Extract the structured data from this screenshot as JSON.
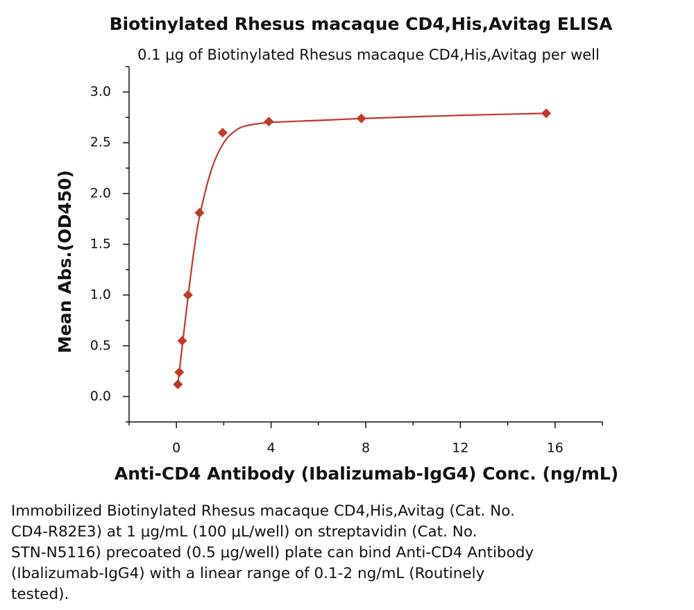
{
  "chart_data": {
    "type": "scatter",
    "title": "Biotinylated Rhesus macaque CD4,His,Avitag ELISA",
    "subtitle": "0.1 μg of Biotinylated Rhesus macaque CD4,His,Avitag per well",
    "x_label": "Anti-CD4 Antibody (Ibalizumab-IgG4) Conc. (ng/mL)",
    "y_label": "Mean Abs.(OD450)",
    "color": "#c0392b",
    "points": {
      "x": [
        0.061,
        0.122,
        0.244,
        0.488,
        0.977,
        1.953,
        3.906,
        7.8125,
        15.625
      ],
      "values": [
        0.12,
        0.24,
        0.55,
        1.0,
        1.81,
        2.6,
        2.71,
        2.74,
        2.79
      ]
    },
    "fit": {
      "x": [
        0.06,
        0.25,
        0.5,
        0.75,
        1,
        1.5,
        2,
        2.5,
        3,
        4,
        6,
        8,
        12,
        15.6
      ],
      "values": [
        0.12,
        0.5,
        1.0,
        1.45,
        1.8,
        2.25,
        2.5,
        2.62,
        2.67,
        2.7,
        2.72,
        2.74,
        2.77,
        2.79
      ]
    },
    "xlim": [
      -2,
      18
    ],
    "xticks": [
      0,
      4,
      8,
      12,
      16
    ],
    "xminor_ticks": [
      -2,
      2,
      6,
      10,
      14,
      18
    ],
    "ylim": [
      -0.25,
      3.25
    ],
    "yticks": [
      {
        "value": 0,
        "label": "0.0"
      },
      {
        "value": 0.5,
        "label": "0.5"
      },
      {
        "value": 1,
        "label": "1.0"
      },
      {
        "value": 1.5,
        "label": "1.5"
      },
      {
        "value": 2,
        "label": "2.0"
      },
      {
        "value": 2.5,
        "label": "2.5"
      },
      {
        "value": 3,
        "label": "3.0"
      }
    ],
    "yminor_ticks": [
      -0.25,
      0.25,
      0.75,
      1.25,
      1.75,
      2.25,
      2.75,
      3.25
    ]
  },
  "caption": [
    "Immobilized Biotinylated Rhesus macaque CD4,His,Avitag (Cat. No.",
    "CD4-R82E3) at 1 μg/mL (100 μL/well) on streptavidin (Cat. No.",
    "STN-N5116) precoated (0.5 μg/well) plate can bind Anti-CD4 Antibody",
    "(Ibalizumab-IgG4) with a linear range of 0.1-2 ng/mL (Routinely",
    "tested)."
  ]
}
